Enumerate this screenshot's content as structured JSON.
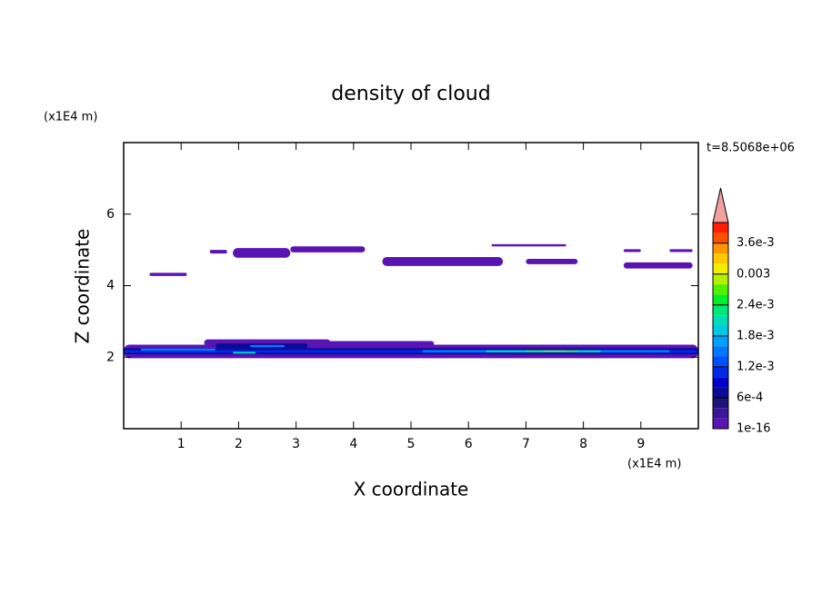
{
  "chart_data": {
    "type": "contour",
    "title": "density of cloud",
    "xlabel": "X coordinate",
    "ylabel": "Z coordinate",
    "x_unit": "(x1E4 m)",
    "y_unit": "(x1E4 m)",
    "annotation": "t=8.5068e+06",
    "xlim": [
      0,
      10
    ],
    "ylim": [
      0,
      8
    ],
    "xticks": [
      1,
      2,
      3,
      4,
      5,
      6,
      7,
      8,
      9
    ],
    "yticks": [
      2,
      4,
      6
    ],
    "clim": [
      0,
      0.004
    ],
    "cticks": [
      {
        "value": 1e-16,
        "label": "1e-16"
      },
      {
        "value": 0.0006,
        "label": "6e-4"
      },
      {
        "value": 0.0012,
        "label": "1.2e-3"
      },
      {
        "value": 0.0018,
        "label": "1.8e-3"
      },
      {
        "value": 0.0024,
        "label": "2.4e-3"
      },
      0.003,
      {
        "value": 0.0036,
        "label": "3.6e-3"
      }
    ],
    "colors": [
      "#5a14b4",
      "#3c1496",
      "#1e1478",
      "#0a0a96",
      "#0000c8",
      "#0028e6",
      "#0050ff",
      "#0078ff",
      "#00a0ff",
      "#00c8e6",
      "#00dcb4",
      "#00e678",
      "#00f028",
      "#50f000",
      "#b4f000",
      "#f0f000",
      "#ffc800",
      "#ff9600",
      "#ff5000",
      "#ff1e00"
    ],
    "extend_color": "#f0a0a0",
    "patches": [
      {
        "x": [
          0.45,
          1.1
        ],
        "z": [
          4.27,
          4.36
        ],
        "value": 0.0001
      },
      {
        "x": [
          1.5,
          1.8
        ],
        "z": [
          4.9,
          5.0
        ],
        "value": 0.0001
      },
      {
        "x": [
          1.9,
          2.9
        ],
        "z": [
          4.78,
          5.05
        ],
        "value": 0.0001
      },
      {
        "x": [
          2.9,
          4.2
        ],
        "z": [
          4.93,
          5.1
        ],
        "value": 0.0001
      },
      {
        "x": [
          4.5,
          6.6
        ],
        "z": [
          4.55,
          4.8
        ],
        "value": 0.0001
      },
      {
        "x": [
          6.4,
          7.7
        ],
        "z": [
          5.1,
          5.16
        ],
        "value": 0.0001
      },
      {
        "x": [
          7.0,
          7.9
        ],
        "z": [
          4.6,
          4.75
        ],
        "value": 0.0001
      },
      {
        "x": [
          8.7,
          9.9
        ],
        "z": [
          4.48,
          4.65
        ],
        "value": 0.0001
      },
      {
        "x": [
          8.7,
          9.0
        ],
        "z": [
          4.94,
          5.02
        ],
        "value": 0.0001
      },
      {
        "x": [
          9.5,
          9.9
        ],
        "z": [
          4.94,
          5.02
        ],
        "value": 0.0001
      },
      {
        "x": [
          0,
          10
        ],
        "z": [
          1.97,
          2.35
        ],
        "value": 0.0001
      },
      {
        "x": [
          1.4,
          3.6
        ],
        "z": [
          2.3,
          2.5
        ],
        "value": 0.0001
      },
      {
        "x": [
          3.5,
          5.4
        ],
        "z": [
          2.3,
          2.45
        ],
        "value": 0.0001
      },
      {
        "x": [
          0,
          10
        ],
        "z": [
          2.08,
          2.25
        ],
        "value": 0.0007
      },
      {
        "x": [
          1.6,
          3.2
        ],
        "z": [
          2.25,
          2.38
        ],
        "value": 0.0007
      },
      {
        "x": [
          0,
          10
        ],
        "z": [
          2.12,
          2.2
        ],
        "value": 0.0011
      },
      {
        "x": [
          0.3,
          1.6
        ],
        "z": [
          2.18,
          2.24
        ],
        "value": 0.0015
      },
      {
        "x": [
          2.2,
          2.8
        ],
        "z": [
          2.28,
          2.34
        ],
        "value": 0.0015
      },
      {
        "x": [
          5.2,
          9.5
        ],
        "z": [
          2.13,
          2.2
        ],
        "value": 0.0015
      },
      {
        "x": [
          1.9,
          2.3
        ],
        "z": [
          2.1,
          2.15
        ],
        "value": 0.0021
      },
      {
        "x": [
          6.3,
          8.3
        ],
        "z": [
          2.14,
          2.19
        ],
        "value": 0.0021
      },
      {
        "x": [
          7.0,
          7.9
        ],
        "z": [
          2.15,
          2.18
        ],
        "value": 0.0027
      },
      {
        "x": [
          7.3,
          7.7
        ],
        "z": [
          2.155,
          2.17
        ],
        "value": 0.0033
      }
    ]
  }
}
